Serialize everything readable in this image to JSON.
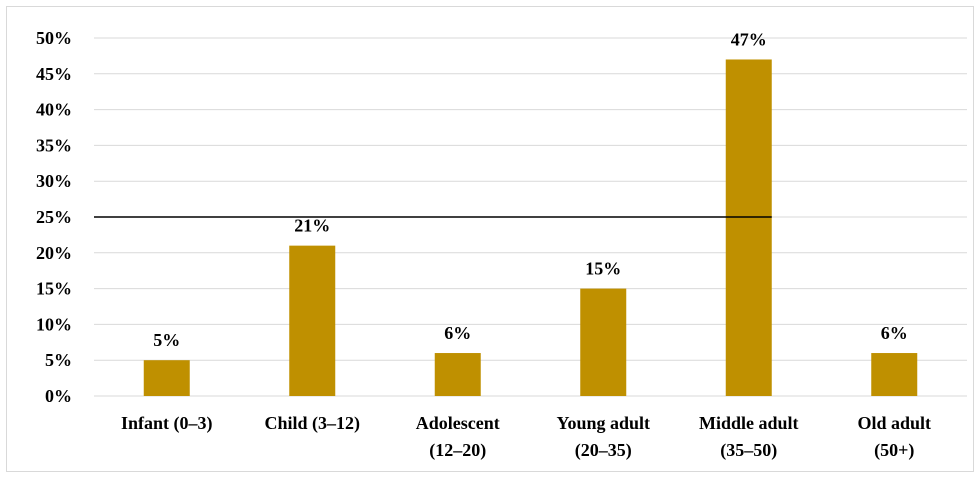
{
  "chart_data": {
    "type": "bar",
    "title": "",
    "xlabel": "",
    "ylabel": "",
    "categories": [
      [
        "Infant (0–3)"
      ],
      [
        "Child (3–12)"
      ],
      [
        "Adolescent",
        "(12–20)"
      ],
      [
        "Young adult",
        "(20–35)"
      ],
      [
        "Middle adult",
        "(35–50)"
      ],
      [
        "Old adult",
        "(50+)"
      ]
    ],
    "values": [
      5,
      21,
      6,
      15,
      47,
      6
    ],
    "value_labels": [
      "5%",
      "21%",
      "6%",
      "15%",
      "47%",
      "6%"
    ],
    "ylim": [
      0,
      50
    ],
    "yticks": [
      0,
      5,
      10,
      15,
      20,
      25,
      30,
      35,
      40,
      45,
      50
    ],
    "ytick_labels": [
      "0%",
      "5%",
      "10%",
      "15%",
      "20%",
      "25%",
      "30%",
      "35%",
      "40%",
      "45%",
      "50%"
    ],
    "reference_line": {
      "y": 25,
      "from_category": 0,
      "to_category": 4
    },
    "grid": true,
    "legend": "none",
    "colors": {
      "bar": "#bf9000",
      "grid": "#d9d9d9",
      "reference_line": "#000000"
    }
  }
}
